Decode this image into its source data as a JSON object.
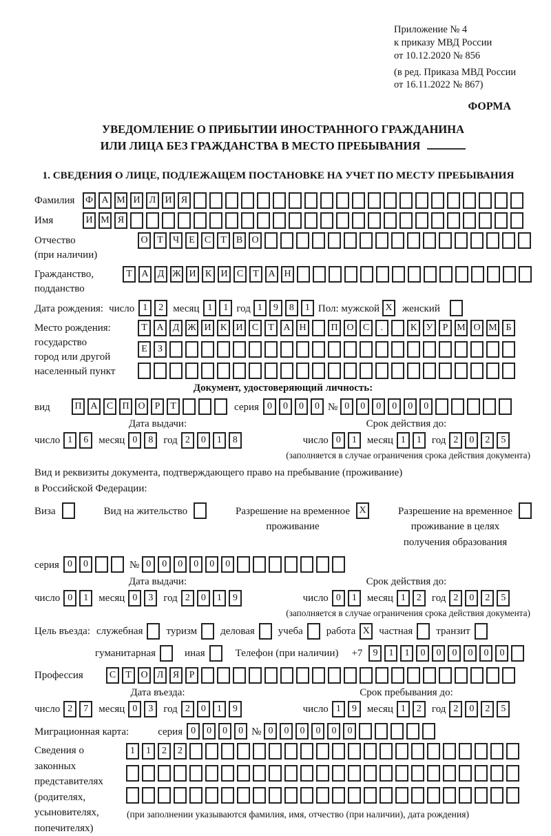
{
  "header": {
    "lines": [
      "Приложение № 4",
      "к приказу МВД России",
      "от 10.12.2020 № 856",
      "(в ред. Приказа МВД России",
      "от 16.11.2022 № 867)"
    ],
    "forma": "ФОРМА"
  },
  "title": {
    "line1": "УВЕДОМЛЕНИЕ О ПРИБЫТИИ ИНОСТРАННОГО ГРАЖДАНИНА",
    "line2": "ИЛИ ЛИЦА БЕЗ ГРАЖДАНСТВА В МЕСТО ПРЕБЫВАНИЯ"
  },
  "section1": {
    "heading": "1. СВЕДЕНИЯ О ЛИЦЕ, ПОДЛЕЖАЩЕМ ПОСТАНОВКЕ НА УЧЕТ ПО МЕСТУ ПРЕБЫВАНИЯ"
  },
  "surname": {
    "label": "Фамилия",
    "cells": {
      "text": "ФАМИЛИЯ",
      "count": 28
    }
  },
  "firstname": {
    "label": "Имя",
    "cells": {
      "text": "ИМЯ",
      "count": 28
    }
  },
  "patronymic": {
    "label1": "Отчество",
    "label2": "(при наличии)",
    "cells": {
      "text": "ОТЧЕСТВО",
      "count": 25
    }
  },
  "citizenship": {
    "label1": "Гражданство,",
    "label2": "подданство",
    "cells": {
      "text": "ТАДЖИКИСТАН",
      "count": 26
    }
  },
  "birth_date": {
    "label": "Дата рождения:",
    "day_label": "число",
    "day": {
      "text": "12",
      "count": 2
    },
    "month_label": "месяц",
    "month": {
      "text": "11",
      "count": 2
    },
    "year_label": "год",
    "year": {
      "text": "1981",
      "count": 4
    },
    "sex_label": "Пол: мужской",
    "male": {
      "text": "X",
      "count": 1
    },
    "female_label": "женский",
    "female": {
      "text": "",
      "count": 1
    }
  },
  "birthplace": {
    "label1": "Место рождения:",
    "label2": "государство",
    "label3": "город или другой",
    "label4": "населенный пункт",
    "row1": {
      "text": "ТАДЖИКИСТАН ПОС. КУРМОМБ",
      "count": 24
    },
    "row2": {
      "text": "ЕЗ",
      "count": 24
    },
    "row3": {
      "text": "",
      "count": 24
    }
  },
  "identity_doc": {
    "heading": "Документ, удостоверяющий личность:",
    "type_label": "вид",
    "type": {
      "text": "ПАСПОРТ",
      "count": 10
    },
    "series_label": "серия",
    "series": {
      "text": "0000",
      "count": 4
    },
    "number_label": "№",
    "number": {
      "text": "000000",
      "count": 11
    },
    "issue": {
      "header": "Дата выдачи:",
      "day_label": "число",
      "day": {
        "text": "16",
        "count": 2
      },
      "month_label": "месяц",
      "month": {
        "text": "08",
        "count": 2
      },
      "year_label": "год",
      "year": {
        "text": "2018",
        "count": 4
      }
    },
    "valid": {
      "header": "Срок действия до:",
      "day_label": "число",
      "day": {
        "text": "01",
        "count": 2
      },
      "month_label": "месяц",
      "month": {
        "text": "11",
        "count": 2
      },
      "year_label": "год",
      "year": {
        "text": "2025",
        "count": 4
      }
    },
    "note": "(заполняется в случае ограничения срока действия документа)"
  },
  "residence_doc": {
    "intro1": "Вид и реквизиты документа, подтверждающего право на пребывание (проживание)",
    "intro2": "в Российской Федерации:",
    "visa_label": "Виза",
    "visa": {
      "text": "",
      "count": 1
    },
    "vnz_label": "Вид на жительство",
    "vnz": {
      "text": "",
      "count": 1
    },
    "rvp_label1": "Разрешение на временное",
    "rvp_label2": "проживание",
    "rvp": {
      "text": "X",
      "count": 1
    },
    "rvp_edu_label1": "Разрешение на временное",
    "rvp_edu_label2": "проживание в целях",
    "rvp_edu_label3": "получения образования",
    "rvp_edu": {
      "text": "",
      "count": 1
    },
    "series_label": "серия",
    "series": {
      "text": "00",
      "count": 4
    },
    "number_label": "№",
    "number": {
      "text": "000000",
      "count": 13
    },
    "issue": {
      "header": "Дата выдачи:",
      "day_label": "число",
      "day": {
        "text": "01",
        "count": 2
      },
      "month_label": "месяц",
      "month": {
        "text": "03",
        "count": 2
      },
      "year_label": "год",
      "year": {
        "text": "2019",
        "count": 4
      }
    },
    "valid": {
      "header": "Срок действия до:",
      "day_label": "число",
      "day": {
        "text": "01",
        "count": 2
      },
      "month_label": "месяц",
      "month": {
        "text": "12",
        "count": 2
      },
      "year_label": "год",
      "year": {
        "text": "2025",
        "count": 4
      }
    },
    "note": "(заполняется в случае ограничения срока действия документа)"
  },
  "purpose": {
    "label": "Цель въезда:",
    "opt1_label": "служебная",
    "opt1": {
      "text": "",
      "count": 1
    },
    "opt2_label": "туризм",
    "opt2": {
      "text": "",
      "count": 1
    },
    "opt3_label": "деловая",
    "opt3": {
      "text": "",
      "count": 1
    },
    "opt4_label": "учеба",
    "opt4": {
      "text": "",
      "count": 1
    },
    "opt5_label": "работа",
    "opt5": {
      "text": "X",
      "count": 1
    },
    "opt6_label": "частная",
    "opt6": {
      "text": "",
      "count": 1
    },
    "opt7_label": "транзит",
    "opt7": {
      "text": "",
      "count": 1
    },
    "opt8_label": "гуманитарная",
    "opt8": {
      "text": "",
      "count": 1
    },
    "opt9_label": "иная",
    "opt9": {
      "text": "",
      "count": 1
    },
    "phone_label": "Телефон (при наличии)",
    "phone_prefix": "+7",
    "phone": {
      "text": "911000000",
      "count": 10
    }
  },
  "profession": {
    "label": "Профессия",
    "cells": {
      "text": "СТОЛЯР",
      "count": 26
    }
  },
  "entry": {
    "arrival": {
      "header": "Дата въезда:",
      "day_label": "число",
      "day": {
        "text": "27",
        "count": 2
      },
      "month_label": "месяц",
      "month": {
        "text": "03",
        "count": 2
      },
      "year_label": "год",
      "year": {
        "text": "2019",
        "count": 4
      }
    },
    "stay": {
      "header": "Срок пребывания до:",
      "day_label": "число",
      "day": {
        "text": "19",
        "count": 2
      },
      "month_label": "месяц",
      "month": {
        "text": "12",
        "count": 2
      },
      "year_label": "год",
      "year": {
        "text": "2025",
        "count": 4
      }
    }
  },
  "migration_card": {
    "label": "Миграционная карта:",
    "series_label": "серия",
    "series": {
      "text": "0000",
      "count": 4
    },
    "number_label": "№",
    "number": {
      "text": "000000",
      "count": 11
    }
  },
  "representatives": {
    "label1": "Сведения о",
    "label2": "законных",
    "label3": "представителях",
    "label4": "(родителях,",
    "label5": "усыновителях,",
    "label6": "попечителях)",
    "row1": {
      "text": "1122",
      "count": 25
    },
    "row2": {
      "text": "",
      "count": 25
    },
    "row3": {
      "text": "",
      "count": 25
    },
    "note": "(при заполнении указываются фамилия, имя, отчество (при наличии), дата рождения)"
  }
}
